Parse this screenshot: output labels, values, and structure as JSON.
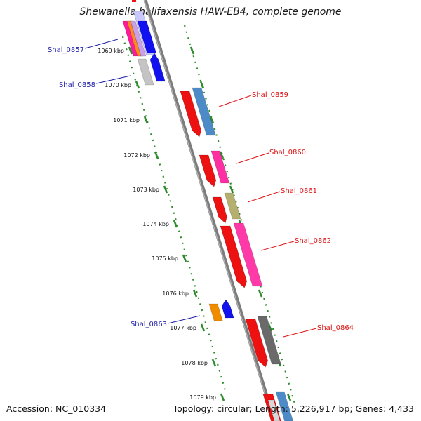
{
  "title": "Shewanella halifaxensis HAW-EB4, complete genome",
  "footer": {
    "accession": "Accession: NC_010334",
    "summary": "Topology: circular; Length: 5,226,917 bp; Genes: 4,433"
  },
  "colors": {
    "backbone": "#8a8a8a",
    "tick": "#2e8b2e",
    "label_left": "#1a1aa8",
    "label_right": "#dd1111",
    "cds_left": "#1010f0",
    "cds_right": "#ee1111",
    "rna": "#f08c00"
  },
  "ticks": [
    "1069 kbp",
    "1070 kbp",
    "1071 kbp",
    "1072 kbp",
    "1073 kbp",
    "1074 kbp",
    "1075 kbp",
    "1076 kbp",
    "1077 kbp",
    "1078 kbp",
    "1079 kbp"
  ],
  "genes": [
    {
      "label": "Shal_0857",
      "side": "left"
    },
    {
      "label": "Shal_0858",
      "side": "left"
    },
    {
      "label": "Shal_0859",
      "side": "right"
    },
    {
      "label": "Shal_0860",
      "side": "right"
    },
    {
      "label": "Shal_0861",
      "side": "right"
    },
    {
      "label": "Shal_0862",
      "side": "right"
    },
    {
      "label": "Shal_0863",
      "side": "left"
    },
    {
      "label": "Shal_0864",
      "side": "right"
    }
  ]
}
